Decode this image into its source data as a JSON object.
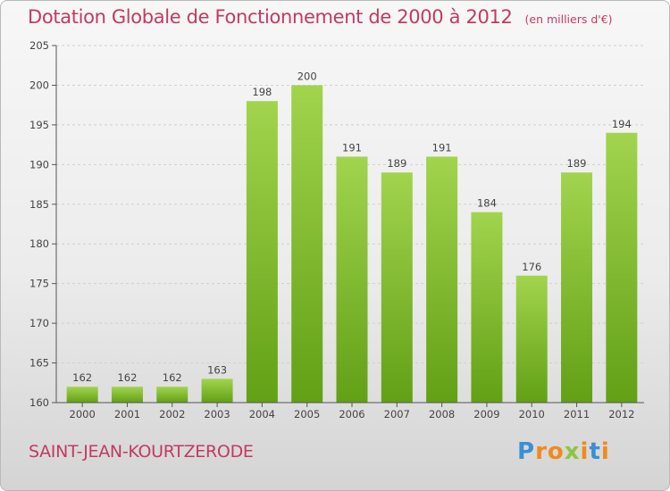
{
  "header": {
    "title": "Dotation Globale de Fonctionnement de 2000 à 2012",
    "subtitle": "(en milliers d'€)"
  },
  "footer": {
    "commune": "SAINT-JEAN-KOURTZERODE",
    "logo_text": "Proxiti",
    "logo_letters": [
      {
        "char": "P",
        "color": "#3a8fd6"
      },
      {
        "char": "r",
        "color": "#f08a1c"
      },
      {
        "char": "o",
        "color": "#f08a1c"
      },
      {
        "char": "x",
        "color": "#8cc63e"
      },
      {
        "char": "i",
        "color": "#f08a1c"
      },
      {
        "char": "t",
        "color": "#3a8fd6"
      },
      {
        "char": "i",
        "color": "#f08a1c"
      }
    ]
  },
  "colors": {
    "title": "#c23a62",
    "bar_light": "#a2d44e",
    "bar_dark": "#62a016",
    "axis": "#555555"
  },
  "chart_data": {
    "type": "bar",
    "categories": [
      "2000",
      "2001",
      "2002",
      "2003",
      "2004",
      "2005",
      "2006",
      "2007",
      "2008",
      "2009",
      "2010",
      "2011",
      "2012"
    ],
    "values": [
      162,
      162,
      162,
      163,
      198,
      200,
      191,
      189,
      191,
      184,
      176,
      189,
      194
    ],
    "ylim": [
      160,
      205
    ],
    "yticks": [
      160,
      165,
      170,
      175,
      180,
      185,
      190,
      195,
      200,
      205
    ],
    "grid": true,
    "legend": "none"
  }
}
